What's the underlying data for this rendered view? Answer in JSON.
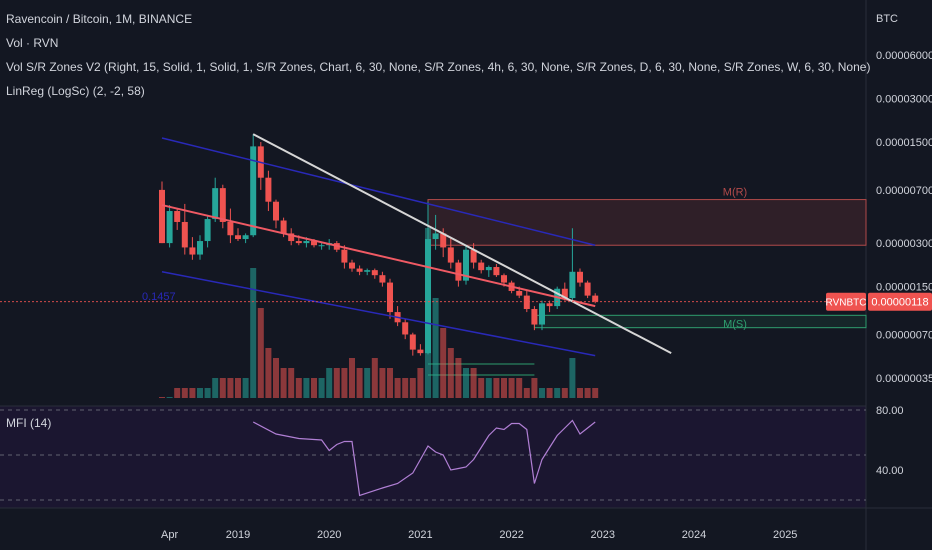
{
  "header": {
    "title": "Ravencoin / Bitcoin, 1M, BINANCE",
    "indicators": [
      "Vol · RVN",
      "Vol S/R Zones V2 (Right, 15, Solid, 1, Solid, 1, S/R Zones, Chart, 6, 30, None, S/R Zones, 4h, 6, 30, None, S/R Zones, D, 6, 30, None, S/R Zones, W, 6, 30, None)",
      "LinReg (LogSc) (2, -2, 58)"
    ]
  },
  "price_axis": {
    "unit": "BTC",
    "ticks": [
      "0.00006000",
      "0.00003000",
      "0.00001500",
      "0.00000700",
      "0.00000300",
      "0.00000150",
      "0.00000070",
      "0.00000035"
    ],
    "current_symbol": "RVNBTC",
    "current_price": "0.00000118"
  },
  "mfi": {
    "label": "MFI (14)",
    "ticks": [
      "80.00",
      "40.00"
    ]
  },
  "time_axis": {
    "labels": [
      "Apr",
      "2019",
      "2020",
      "2021",
      "2022",
      "2023",
      "2024",
      "2025"
    ]
  },
  "annotations": {
    "resistance_zone": "M(R)",
    "support_zone": "M(S)",
    "linreg_label": "0.1457"
  },
  "colors": {
    "background": "#131722",
    "up": "#26a69a",
    "down": "#ef5350",
    "channel": "#2929b8",
    "linreg_mid": "#f05a64",
    "trendline": "#d6d6d6",
    "resistance": "#b24a4a",
    "support": "#2e9e6e",
    "mfi_line": "#b07fd4"
  },
  "chart_data": {
    "type": "candlestick",
    "title": "Ravencoin / Bitcoin, 1M, BINANCE",
    "y_scale": "log",
    "candles": [
      {
        "t": "2018-03",
        "o": 7e-06,
        "h": 8e-06,
        "l": 3e-06,
        "c": 3e-06,
        "v": 0.0
      },
      {
        "t": "2018-04",
        "o": 3e-06,
        "h": 5.5e-06,
        "l": 2.8e-06,
        "c": 5e-06,
        "v": 0.0
      },
      {
        "t": "2018-05",
        "o": 5e-06,
        "h": 5.2e-06,
        "l": 3.7e-06,
        "c": 4.2e-06,
        "v": 0.01
      },
      {
        "t": "2018-06",
        "o": 4.2e-06,
        "h": 5.6e-06,
        "l": 2.5e-06,
        "c": 2.8e-06,
        "v": 0.01
      },
      {
        "t": "2018-07",
        "o": 2.8e-06,
        "h": 3.3e-06,
        "l": 2.3e-06,
        "c": 2.5e-06,
        "v": 0.01
      },
      {
        "t": "2018-08",
        "o": 2.5e-06,
        "h": 3.4e-06,
        "l": 2.3e-06,
        "c": 3.1e-06,
        "v": 0.01
      },
      {
        "t": "2018-09",
        "o": 3.1e-06,
        "h": 4.7e-06,
        "l": 2.8e-06,
        "c": 4.4e-06,
        "v": 0.01
      },
      {
        "t": "2018-10",
        "o": 4.4e-06,
        "h": 8.5e-06,
        "l": 4.2e-06,
        "c": 7.2e-06,
        "v": 0.02
      },
      {
        "t": "2018-11",
        "o": 7.2e-06,
        "h": 7.6e-06,
        "l": 3.8e-06,
        "c": 4.2e-06,
        "v": 0.02
      },
      {
        "t": "2018-12",
        "o": 4.2e-06,
        "h": 5.2e-06,
        "l": 3e-06,
        "c": 3.4e-06,
        "v": 0.02
      },
      {
        "t": "2019-01",
        "o": 3.4e-06,
        "h": 3.8e-06,
        "l": 3.1e-06,
        "c": 3.2e-06,
        "v": 0.02
      },
      {
        "t": "2019-02",
        "o": 3.2e-06,
        "h": 3.5e-06,
        "l": 3e-06,
        "c": 3.4e-06,
        "v": 0.02
      },
      {
        "t": "2019-03",
        "o": 3.4e-06,
        "h": 1.7e-05,
        "l": 3.3e-06,
        "c": 1.4e-05,
        "v": 0.13
      },
      {
        "t": "2019-04",
        "o": 1.4e-05,
        "h": 1.5e-05,
        "l": 7e-06,
        "c": 8.5e-06,
        "v": 0.09
      },
      {
        "t": "2019-05",
        "o": 8.5e-06,
        "h": 9.5e-06,
        "l": 5e-06,
        "c": 5.8e-06,
        "v": 0.05
      },
      {
        "t": "2019-06",
        "o": 5.8e-06,
        "h": 6e-06,
        "l": 3.8e-06,
        "c": 4.3e-06,
        "v": 0.04
      },
      {
        "t": "2019-07",
        "o": 4.3e-06,
        "h": 4.5e-06,
        "l": 3.3e-06,
        "c": 3.5e-06,
        "v": 0.03
      },
      {
        "t": "2019-08",
        "o": 3.5e-06,
        "h": 3.8e-06,
        "l": 2.9e-06,
        "c": 3.1e-06,
        "v": 0.03
      },
      {
        "t": "2019-09",
        "o": 3.1e-06,
        "h": 3.4e-06,
        "l": 2.9e-06,
        "c": 3e-06,
        "v": 0.02
      },
      {
        "t": "2019-10",
        "o": 3e-06,
        "h": 3.3e-06,
        "l": 2.8e-06,
        "c": 3.1e-06,
        "v": 0.02
      },
      {
        "t": "2019-11",
        "o": 3.1e-06,
        "h": 3.2e-06,
        "l": 2.8e-06,
        "c": 2.9e-06,
        "v": 0.02
      },
      {
        "t": "2019-12",
        "o": 2.9e-06,
        "h": 3e-06,
        "l": 2.7e-06,
        "c": 2.9e-06,
        "v": 0.02
      },
      {
        "t": "2020-01",
        "o": 2.9e-06,
        "h": 3.2e-06,
        "l": 2.7e-06,
        "c": 3e-06,
        "v": 0.03
      },
      {
        "t": "2020-02",
        "o": 3e-06,
        "h": 3.1e-06,
        "l": 2.6e-06,
        "c": 2.7e-06,
        "v": 0.03
      },
      {
        "t": "2020-03",
        "o": 2.7e-06,
        "h": 2.9e-06,
        "l": 2e-06,
        "c": 2.2e-06,
        "v": 0.03
      },
      {
        "t": "2020-04",
        "o": 2.2e-06,
        "h": 2.3e-06,
        "l": 1.9e-06,
        "c": 2e-06,
        "v": 0.04
      },
      {
        "t": "2020-05",
        "o": 2e-06,
        "h": 2.1e-06,
        "l": 1.8e-06,
        "c": 1.9e-06,
        "v": 0.03
      },
      {
        "t": "2020-06",
        "o": 1.9e-06,
        "h": 2e-06,
        "l": 1.8e-06,
        "c": 1.95e-06,
        "v": 0.03
      },
      {
        "t": "2020-07",
        "o": 1.95e-06,
        "h": 2e-06,
        "l": 1.7e-06,
        "c": 1.8e-06,
        "v": 0.04
      },
      {
        "t": "2020-08",
        "o": 1.8e-06,
        "h": 1.9e-06,
        "l": 1.5e-06,
        "c": 1.6e-06,
        "v": 0.03
      },
      {
        "t": "2020-09",
        "o": 1.6e-06,
        "h": 1.7e-06,
        "l": 9e-07,
        "c": 1e-06,
        "v": 0.03
      },
      {
        "t": "2020-10",
        "o": 1e-06,
        "h": 1.1e-06,
        "l": 8e-07,
        "c": 8.5e-07,
        "v": 0.02
      },
      {
        "t": "2020-11",
        "o": 8.5e-07,
        "h": 9e-07,
        "l": 6.5e-07,
        "c": 7e-07,
        "v": 0.02
      },
      {
        "t": "2020-12",
        "o": 7e-07,
        "h": 7.2e-07,
        "l": 5e-07,
        "c": 5.5e-07,
        "v": 0.02
      },
      {
        "t": "2021-01",
        "o": 5.5e-07,
        "h": 6e-07,
        "l": 5e-07,
        "c": 5.2e-07,
        "v": 0.03
      },
      {
        "t": "2021-02",
        "o": 5.2e-07,
        "h": 5.8e-06,
        "l": 5.1e-07,
        "c": 3.2e-06,
        "v": 0.17
      },
      {
        "t": "2021-03",
        "o": 3.2e-06,
        "h": 4.7e-06,
        "l": 2.7e-06,
        "c": 3.5e-06,
        "v": 0.1
      },
      {
        "t": "2021-04",
        "o": 3.5e-06,
        "h": 3.8e-06,
        "l": 2.4e-06,
        "c": 2.8e-06,
        "v": 0.07
      },
      {
        "t": "2021-05",
        "o": 2.8e-06,
        "h": 3.3e-06,
        "l": 2e-06,
        "c": 2.2e-06,
        "v": 0.05
      },
      {
        "t": "2021-06",
        "o": 2.2e-06,
        "h": 2.3e-06,
        "l": 1.5e-06,
        "c": 1.65e-06,
        "v": 0.04
      },
      {
        "t": "2021-07",
        "o": 1.65e-06,
        "h": 2.9e-06,
        "l": 1.55e-06,
        "c": 2.7e-06,
        "v": 0.03
      },
      {
        "t": "2021-08",
        "o": 2.7e-06,
        "h": 3e-06,
        "l": 2e-06,
        "c": 2.2e-06,
        "v": 0.03
      },
      {
        "t": "2021-09",
        "o": 2.2e-06,
        "h": 2.3e-06,
        "l": 1.85e-06,
        "c": 1.95e-06,
        "v": 0.02
      },
      {
        "t": "2021-10",
        "o": 1.95e-06,
        "h": 2.1e-06,
        "l": 1.75e-06,
        "c": 2.05e-06,
        "v": 0.02
      },
      {
        "t": "2021-11",
        "o": 2.05e-06,
        "h": 2.15e-06,
        "l": 1.75e-06,
        "c": 1.8e-06,
        "v": 0.02
      },
      {
        "t": "2021-12",
        "o": 1.8e-06,
        "h": 1.85e-06,
        "l": 1.5e-06,
        "c": 1.6e-06,
        "v": 0.02
      },
      {
        "t": "2022-01",
        "o": 1.6e-06,
        "h": 1.65e-06,
        "l": 1.35e-06,
        "c": 1.4e-06,
        "v": 0.02
      },
      {
        "t": "2022-02",
        "o": 1.4e-06,
        "h": 1.5e-06,
        "l": 1.25e-06,
        "c": 1.3e-06,
        "v": 0.02
      },
      {
        "t": "2022-03",
        "o": 1.3e-06,
        "h": 1.4e-06,
        "l": 1e-06,
        "c": 1.05e-06,
        "v": 0.01
      },
      {
        "t": "2022-04",
        "o": 1.05e-06,
        "h": 1.1e-06,
        "l": 7.5e-07,
        "c": 8.2e-07,
        "v": 0.02
      },
      {
        "t": "2022-05",
        "o": 8.2e-07,
        "h": 1.2e-06,
        "l": 7.5e-07,
        "c": 1.15e-06,
        "v": 0.01
      },
      {
        "t": "2022-06",
        "o": 1.15e-06,
        "h": 1.2e-06,
        "l": 1e-06,
        "c": 1.1e-06,
        "v": 0.01
      },
      {
        "t": "2022-07",
        "o": 1.1e-06,
        "h": 1.5e-06,
        "l": 1.05e-06,
        "c": 1.45e-06,
        "v": 0.01
      },
      {
        "t": "2022-08",
        "o": 1.45e-06,
        "h": 1.6e-06,
        "l": 1.2e-06,
        "c": 1.25e-06,
        "v": 0.01
      },
      {
        "t": "2022-09",
        "o": 1.25e-06,
        "h": 3.8e-06,
        "l": 1.2e-06,
        "c": 1.9e-06,
        "v": 0.04
      },
      {
        "t": "2022-10",
        "o": 1.9e-06,
        "h": 2e-06,
        "l": 1.5e-06,
        "c": 1.6e-06,
        "v": 0.01
      },
      {
        "t": "2022-11",
        "o": 1.6e-06,
        "h": 1.65e-06,
        "l": 1.25e-06,
        "c": 1.3e-06,
        "v": 0.01
      },
      {
        "t": "2022-12",
        "o": 1.3e-06,
        "h": 1.35e-06,
        "l": 1.15e-06,
        "c": 1.18e-06,
        "v": 0.01
      }
    ],
    "mfi": [
      {
        "t": "2019-03",
        "v": 72
      },
      {
        "t": "2019-06",
        "v": 64
      },
      {
        "t": "2019-09",
        "v": 61
      },
      {
        "t": "2019-12",
        "v": 60
      },
      {
        "t": "2020-01",
        "v": 53
      },
      {
        "t": "2020-02",
        "v": 57
      },
      {
        "t": "2020-03",
        "v": 59
      },
      {
        "t": "2020-04",
        "v": 59
      },
      {
        "t": "2020-05",
        "v": 23
      },
      {
        "t": "2020-08",
        "v": 28
      },
      {
        "t": "2020-10",
        "v": 31
      },
      {
        "t": "2020-12",
        "v": 38
      },
      {
        "t": "2021-02",
        "v": 56
      },
      {
        "t": "2021-03",
        "v": 52
      },
      {
        "t": "2021-04",
        "v": 50
      },
      {
        "t": "2021-05",
        "v": 40
      },
      {
        "t": "2021-06",
        "v": 41
      },
      {
        "t": "2021-07",
        "v": 42
      },
      {
        "t": "2021-08",
        "v": 47
      },
      {
        "t": "2021-09",
        "v": 55
      },
      {
        "t": "2021-10",
        "v": 63
      },
      {
        "t": "2021-11",
        "v": 68
      },
      {
        "t": "2021-12",
        "v": 67
      },
      {
        "t": "2022-01",
        "v": 71
      },
      {
        "t": "2022-02",
        "v": 71
      },
      {
        "t": "2022-03",
        "v": 67
      },
      {
        "t": "2022-04",
        "v": 31
      },
      {
        "t": "2022-05",
        "v": 47
      },
      {
        "t": "2022-06",
        "v": 55
      },
      {
        "t": "2022-07",
        "v": 63
      },
      {
        "t": "2022-08",
        "v": 68
      },
      {
        "t": "2022-09",
        "v": 73
      },
      {
        "t": "2022-10",
        "v": 64
      },
      {
        "t": "2022-11",
        "v": 68
      },
      {
        "t": "2022-12",
        "v": 72
      }
    ],
    "lines": {
      "linreg_mid": [
        {
          "t": "2018-03",
          "p": 5.5e-06
        },
        {
          "t": "2022-12",
          "p": 1.1e-06
        }
      ],
      "linreg_upper": [
        {
          "t": "2018-03",
          "p": 1.6e-05
        },
        {
          "t": "2022-12",
          "p": 2.9e-06
        }
      ],
      "linreg_lower": [
        {
          "t": "2018-03",
          "p": 1.9e-06
        },
        {
          "t": "2022-12",
          "p": 5e-07
        }
      ],
      "trendline": [
        {
          "t": "2019-03",
          "p": 1.7e-05
        },
        {
          "t": "2023-10",
          "p": 5.2e-07
        }
      ]
    },
    "zones": {
      "resistance": {
        "from": "2021-02",
        "to": "2025-12",
        "top": 6e-06,
        "bottom": 2.9e-06
      },
      "support": {
        "from": "2022-04",
        "to": "2025-12",
        "top": 9.5e-07,
        "bottom": 7.8e-07
      }
    },
    "current_price": 1.18e-06,
    "mfi_range": [
      0,
      100
    ]
  }
}
